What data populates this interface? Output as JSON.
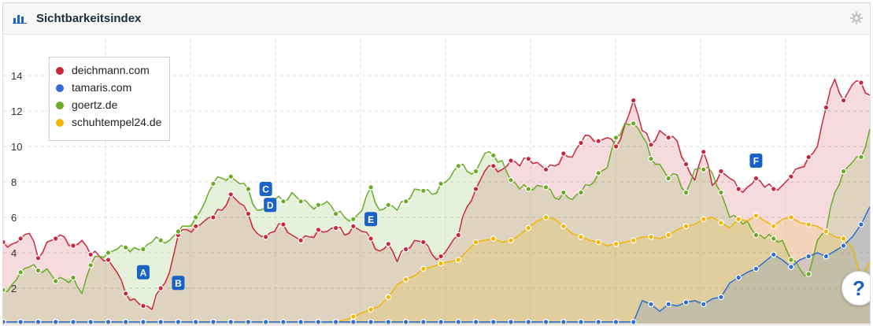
{
  "widget": {
    "title": "Sichtbarkeitsindex",
    "help_label": "?"
  },
  "colors": {
    "deichmann": "#c8283e",
    "tamaris": "#2f6fd3",
    "goertz": "#6aab27",
    "schuhtempel": "#f2b705",
    "marker": "#1a63c6",
    "grid": "#d9d9d9"
  },
  "chart_data": {
    "type": "area",
    "title": "Sichtbarkeitsindex",
    "xlabel": "",
    "ylabel": "",
    "ylim": [
      0,
      16
    ],
    "y_ticks": [
      2,
      4,
      6,
      8,
      10,
      12,
      14
    ],
    "grid": true,
    "legend_position": "top-left",
    "x": [
      0,
      1,
      2,
      3,
      4,
      5,
      6,
      7,
      8,
      9,
      10,
      11,
      12,
      13,
      14,
      15,
      16,
      17,
      18,
      19,
      20,
      21,
      22,
      23,
      24,
      25,
      26,
      27,
      28,
      29,
      30,
      31,
      32,
      33,
      34,
      35,
      36,
      37,
      38,
      39,
      40,
      41,
      42,
      43,
      44,
      45,
      46,
      47,
      48,
      49,
      50,
      51,
      52,
      53,
      54,
      55,
      56,
      57,
      58,
      59,
      60,
      61,
      62,
      63,
      64,
      65,
      66,
      67,
      68,
      69,
      70,
      71,
      72,
      73,
      74,
      75,
      76,
      77,
      78,
      79,
      80,
      81,
      82,
      83,
      84,
      85,
      86,
      87,
      88,
      89,
      90,
      91,
      92,
      93,
      94,
      95,
      96,
      97,
      98,
      99
    ],
    "series": [
      {
        "name": "deichmann.com",
        "values": [
          4.6,
          4.5,
          4.8,
          5.1,
          3.7,
          4.6,
          4.8,
          4.9,
          4.4,
          4.7,
          3.9,
          3.8,
          3.6,
          2.9,
          1.7,
          1.4,
          1.0,
          0.8,
          2.0,
          2.9,
          5.0,
          5.3,
          5.5,
          5.8,
          6.0,
          6.4,
          7.3,
          6.8,
          6.2,
          5.1,
          4.9,
          5.2,
          5.6,
          5.0,
          4.7,
          4.9,
          5.3,
          5.2,
          5.4,
          5.0,
          5.5,
          5.2,
          4.8,
          4.1,
          4.5,
          3.5,
          4.2,
          4.7,
          4.6,
          3.9,
          3.8,
          4.4,
          5.0,
          6.6,
          7.6,
          8.6,
          8.9,
          8.7,
          9.2,
          8.9,
          9.3,
          9.1,
          8.7,
          8.9,
          9.6,
          9.4,
          10.2,
          10.6,
          10.3,
          10.5,
          10.0,
          11.2,
          12.6,
          10.9,
          10.1,
          10.9,
          10.5,
          10.3,
          9.0,
          8.1,
          9.7,
          7.8,
          8.6,
          8.2,
          7.6,
          7.7,
          8.2,
          7.7,
          7.6,
          7.8,
          8.3,
          8.8,
          9.4,
          10.0,
          12.2,
          13.8,
          12.6,
          13.5,
          13.6,
          12.9
        ]
      },
      {
        "name": "tamaris.com",
        "values": [
          0.1,
          0.1,
          0.1,
          0.1,
          0.1,
          0.1,
          0.1,
          0.1,
          0.1,
          0.1,
          0.1,
          0.1,
          0.1,
          0.1,
          0.1,
          0.1,
          0.1,
          0.1,
          0.1,
          0.1,
          0.1,
          0.1,
          0.1,
          0.1,
          0.1,
          0.1,
          0.1,
          0.1,
          0.1,
          0.1,
          0.1,
          0.1,
          0.1,
          0.1,
          0.1,
          0.1,
          0.1,
          0.1,
          0.1,
          0.1,
          0.1,
          0.1,
          0.1,
          0.1,
          0.1,
          0.1,
          0.1,
          0.1,
          0.1,
          0.1,
          0.1,
          0.1,
          0.1,
          0.1,
          0.1,
          0.1,
          0.1,
          0.1,
          0.1,
          0.1,
          0.1,
          0.1,
          0.1,
          0.1,
          0.1,
          0.1,
          0.1,
          0.1,
          0.1,
          0.1,
          0.1,
          0.1,
          0.1,
          1.3,
          1.1,
          0.7,
          1.1,
          1.0,
          1.2,
          1.3,
          1.1,
          1.4,
          1.5,
          2.3,
          2.6,
          2.9,
          3.1,
          3.5,
          3.9,
          3.6,
          3.2,
          3.6,
          3.8,
          4.0,
          3.8,
          4.1,
          4.4,
          4.9,
          5.6,
          6.6
        ]
      },
      {
        "name": "goertz.de",
        "values": [
          1.9,
          2.2,
          2.9,
          3.2,
          3.0,
          3.1,
          2.4,
          2.5,
          2.6,
          1.7,
          3.3,
          3.8,
          4.0,
          4.2,
          4.3,
          4.3,
          4.2,
          4.6,
          4.7,
          4.7,
          5.2,
          5.5,
          6.0,
          6.8,
          7.9,
          8.2,
          8.3,
          7.9,
          7.6,
          6.4,
          6.6,
          7.0,
          6.9,
          7.4,
          6.9,
          6.7,
          6.7,
          6.9,
          6.2,
          6.0,
          5.9,
          6.4,
          7.7,
          6.4,
          6.7,
          6.4,
          6.9,
          7.6,
          7.5,
          7.3,
          7.9,
          8.2,
          8.9,
          8.6,
          8.6,
          9.6,
          9.5,
          9.2,
          8.1,
          7.6,
          7.6,
          7.8,
          7.7,
          7.1,
          7.4,
          7.0,
          7.4,
          7.8,
          8.5,
          8.8,
          10.5,
          11.3,
          11.3,
          10.6,
          9.3,
          9.0,
          8.2,
          8.4,
          7.4,
          8.7,
          8.7,
          8.5,
          7.4,
          6.0,
          5.9,
          5.8,
          5.0,
          4.8,
          4.8,
          4.7,
          3.6,
          3.1,
          2.8,
          4.7,
          5.2,
          7.4,
          8.6,
          9.1,
          9.4,
          11.0
        ]
      },
      {
        "name": "schuhtempel24.de",
        "values": [
          0.1,
          0.1,
          0.1,
          0.1,
          0.1,
          0.1,
          0.1,
          0.1,
          0.1,
          0.1,
          0.1,
          0.1,
          0.1,
          0.1,
          0.1,
          0.1,
          0.1,
          0.1,
          0.1,
          0.1,
          0.1,
          0.1,
          0.1,
          0.1,
          0.1,
          0.1,
          0.1,
          0.1,
          0.1,
          0.1,
          0.1,
          0.1,
          0.1,
          0.1,
          0.1,
          0.1,
          0.1,
          0.1,
          0.1,
          0.2,
          0.4,
          0.6,
          0.8,
          1.0,
          1.5,
          2.2,
          2.5,
          2.7,
          3.1,
          3.2,
          3.4,
          3.5,
          3.6,
          4.1,
          4.6,
          4.7,
          4.8,
          4.6,
          4.7,
          5.0,
          5.4,
          5.8,
          6.0,
          5.9,
          5.5,
          5.1,
          4.9,
          4.7,
          4.6,
          4.4,
          4.5,
          4.6,
          4.7,
          4.9,
          4.9,
          4.8,
          5.0,
          5.3,
          5.5,
          5.6,
          5.9,
          6.0,
          5.7,
          5.4,
          5.9,
          5.8,
          6.1,
          5.8,
          5.5,
          5.9,
          6.0,
          5.7,
          5.6,
          5.5,
          5.2,
          4.9,
          4.8,
          4.3,
          2.6,
          3.5
        ]
      }
    ],
    "annotations": [
      {
        "label": "A",
        "x": 16,
        "y": 2.9
      },
      {
        "label": "B",
        "x": 20,
        "y": 2.3
      },
      {
        "label": "C",
        "x": 30,
        "y": 7.6
      },
      {
        "label": "D",
        "x": 30.5,
        "y": 6.7
      },
      {
        "label": "E",
        "x": 42,
        "y": 5.9
      },
      {
        "label": "F",
        "x": 86,
        "y": 9.2
      }
    ]
  }
}
